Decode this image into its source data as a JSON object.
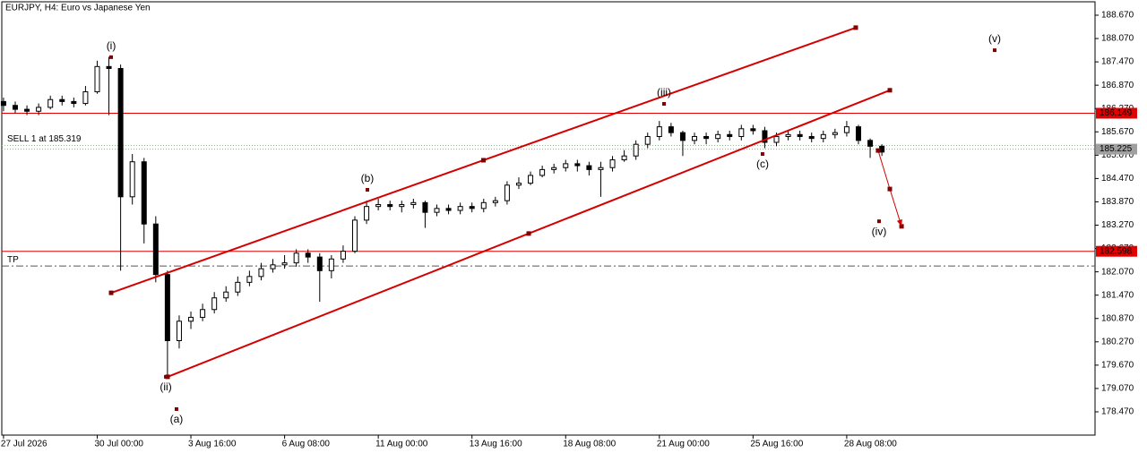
{
  "chart_data": {
    "type": "candlestick",
    "title": "EURJPY, H4:  Euro vs Japanese Yen",
    "xlim": [
      -0.3,
      93.2
    ],
    "ylim": [
      177.871,
      189.061
    ],
    "xticks": [
      {
        "value": 0,
        "label": "27 Jul 2026"
      },
      {
        "value": 8,
        "label": "30 Jul 00:00"
      },
      {
        "value": 16,
        "label": "3 Aug 16:00"
      },
      {
        "value": 24,
        "label": "6 Aug 08:00"
      },
      {
        "value": 32,
        "label": "11 Aug 00:00"
      },
      {
        "value": 40,
        "label": "13 Aug 16:00"
      },
      {
        "value": 48,
        "label": "18 Aug 08:00"
      },
      {
        "value": 56,
        "label": "21 Aug 00:00"
      },
      {
        "value": 64,
        "label": "25 Aug 16:00"
      },
      {
        "value": 72,
        "label": "28 Aug 08:00"
      }
    ],
    "yticks": [
      {
        "value": 188.67,
        "label": "188.670"
      },
      {
        "value": 188.07,
        "label": "188.070"
      },
      {
        "value": 187.47,
        "label": "187.470"
      },
      {
        "value": 186.87,
        "label": "186.870"
      },
      {
        "value": 186.27,
        "label": "186.270"
      },
      {
        "value": 185.67,
        "label": "185.670"
      },
      {
        "value": 185.07,
        "label": "185.070"
      },
      {
        "value": 184.47,
        "label": "184.470"
      },
      {
        "value": 183.87,
        "label": "183.870"
      },
      {
        "value": 183.27,
        "label": "183.270"
      },
      {
        "value": 182.67,
        "label": "182.670"
      },
      {
        "value": 182.07,
        "label": "182.070"
      },
      {
        "value": 181.47,
        "label": "181.470"
      },
      {
        "value": 180.87,
        "label": "180.870"
      },
      {
        "value": 180.27,
        "label": "180.270"
      },
      {
        "value": 179.67,
        "label": "179.670"
      },
      {
        "value": 179.07,
        "label": "179.070"
      },
      {
        "value": 178.47,
        "label": "178.470"
      }
    ],
    "open": [
      186.45,
      186.35,
      186.25,
      186.2,
      186.3,
      186.5,
      186.45,
      186.4,
      186.7,
      187.35,
      187.3,
      184.0,
      184.9,
      183.3,
      182.0,
      180.3,
      180.8,
      180.9,
      181.1,
      181.4,
      181.55,
      181.8,
      181.95,
      182.15,
      182.25,
      182.3,
      182.55,
      182.45,
      182.1,
      182.4,
      182.6,
      183.4,
      183.75,
      183.8,
      183.75,
      183.8,
      183.85,
      183.6,
      183.7,
      183.65,
      183.75,
      183.7,
      183.85,
      183.9,
      184.3,
      184.35,
      184.55,
      184.7,
      184.75,
      184.85,
      184.8,
      184.7,
      184.75,
      184.95,
      185.05,
      185.35,
      185.55,
      185.8,
      185.65,
      185.45,
      185.55,
      185.5,
      185.6,
      185.55,
      185.75,
      185.7,
      185.4,
      185.55,
      185.6,
      185.55,
      185.5,
      185.6,
      185.65,
      185.8,
      185.45,
      185.3
    ],
    "high": [
      186.55,
      186.45,
      186.35,
      186.4,
      186.6,
      186.6,
      186.55,
      186.85,
      187.5,
      187.6,
      187.4,
      185.1,
      185.0,
      183.5,
      182.1,
      180.95,
      181.05,
      181.25,
      181.55,
      181.7,
      181.95,
      182.1,
      182.3,
      182.4,
      182.5,
      182.65,
      182.65,
      182.55,
      182.5,
      182.75,
      183.5,
      183.9,
      183.95,
      183.9,
      183.9,
      183.95,
      183.9,
      183.8,
      183.8,
      183.85,
      183.85,
      183.95,
      184.0,
      184.4,
      184.5,
      184.65,
      184.8,
      184.85,
      184.95,
      184.95,
      184.9,
      184.9,
      185.05,
      185.2,
      185.45,
      185.65,
      185.95,
      185.9,
      185.7,
      185.65,
      185.65,
      185.7,
      185.7,
      185.85,
      185.85,
      185.8,
      185.65,
      185.7,
      185.7,
      185.65,
      185.7,
      185.75,
      185.95,
      185.85,
      185.5,
      185.35
    ],
    "low": [
      186.2,
      186.15,
      186.1,
      186.1,
      186.25,
      186.35,
      186.3,
      186.35,
      186.65,
      186.1,
      182.1,
      183.8,
      182.8,
      181.8,
      179.4,
      180.1,
      180.6,
      180.8,
      181.0,
      181.3,
      181.45,
      181.7,
      181.85,
      182.05,
      182.15,
      182.2,
      182.3,
      181.3,
      181.9,
      182.3,
      182.55,
      183.3,
      183.65,
      183.65,
      183.6,
      183.7,
      183.2,
      183.5,
      183.55,
      183.55,
      183.6,
      183.6,
      183.75,
      183.8,
      184.2,
      184.3,
      184.5,
      184.6,
      184.65,
      184.65,
      184.55,
      184.0,
      184.65,
      184.9,
      184.95,
      185.25,
      185.45,
      185.55,
      185.05,
      185.35,
      185.35,
      185.4,
      185.45,
      185.45,
      185.6,
      185.25,
      185.3,
      185.45,
      185.45,
      185.4,
      185.4,
      185.5,
      185.55,
      185.35,
      185.0,
      185.05
    ],
    "close": [
      186.35,
      186.25,
      186.2,
      186.3,
      186.5,
      186.45,
      186.4,
      186.7,
      187.35,
      187.3,
      184.0,
      184.9,
      183.3,
      182.0,
      180.3,
      180.8,
      180.9,
      181.1,
      181.4,
      181.55,
      181.8,
      181.95,
      182.15,
      182.25,
      182.3,
      182.55,
      182.45,
      182.1,
      182.4,
      182.6,
      183.4,
      183.75,
      183.8,
      183.75,
      183.8,
      183.85,
      183.6,
      183.7,
      183.65,
      183.75,
      183.7,
      183.85,
      183.9,
      184.3,
      184.35,
      184.55,
      184.7,
      184.75,
      184.85,
      184.8,
      184.7,
      184.75,
      184.95,
      185.05,
      185.35,
      185.55,
      185.8,
      185.65,
      185.45,
      185.55,
      185.5,
      185.6,
      185.55,
      185.75,
      185.7,
      185.4,
      185.55,
      185.6,
      185.55,
      185.5,
      185.6,
      185.65,
      185.8,
      185.45,
      185.3,
      185.15
    ],
    "trendlines": [
      {
        "color": "#d40000",
        "x": [
          9.19,
          72.77
        ],
        "y": [
          181.53,
          188.35
        ]
      },
      {
        "color": "#d40000",
        "x": [
          14.01,
          75.68
        ],
        "y": [
          179.37,
          186.74
        ]
      }
    ],
    "projection": {
      "color": "#d40000",
      "x": [
        74.68,
        75.68,
        76.68
      ],
      "y": [
        185.19,
        184.2,
        183.24
      ]
    },
    "waves": [
      {
        "label": "(i)",
        "x": 9.19,
        "y": 187.59,
        "position": "above"
      },
      {
        "label": "(ii)",
        "x": 13.86,
        "y": 179.37,
        "position": "below"
      },
      {
        "label": "(iii)",
        "x": 56.4,
        "y": 186.39,
        "position": "above"
      },
      {
        "label": "(iv)",
        "x": 74.76,
        "y": 183.37,
        "position": "below"
      },
      {
        "label": "(v)",
        "x": 84.63,
        "y": 187.77,
        "position": "above"
      },
      {
        "label": "(a)",
        "x": 14.77,
        "y": 178.54,
        "position": "below"
      },
      {
        "label": "(b)",
        "x": 31.07,
        "y": 184.18,
        "position": "above"
      },
      {
        "label": "(c)",
        "x": 64.81,
        "y": 185.1,
        "position": "below"
      }
    ],
    "wave_color": "#c0392b",
    "levels": [
      {
        "value": 186.149,
        "color": "#e00000",
        "style": "solid",
        "box": true
      },
      {
        "value": 185.319,
        "color": "#8fbc8f",
        "style": "dotted",
        "text": "SELL 1 at 185.319"
      },
      {
        "value": 185.225,
        "color": "#a0a0a0",
        "style": "dotted",
        "box": true
      },
      {
        "value": 182.598,
        "color": "#e00000",
        "style": "solid",
        "box": true
      },
      {
        "value": 182.22,
        "color": "#555555",
        "style": "dashdot",
        "text": "TP"
      }
    ]
  }
}
